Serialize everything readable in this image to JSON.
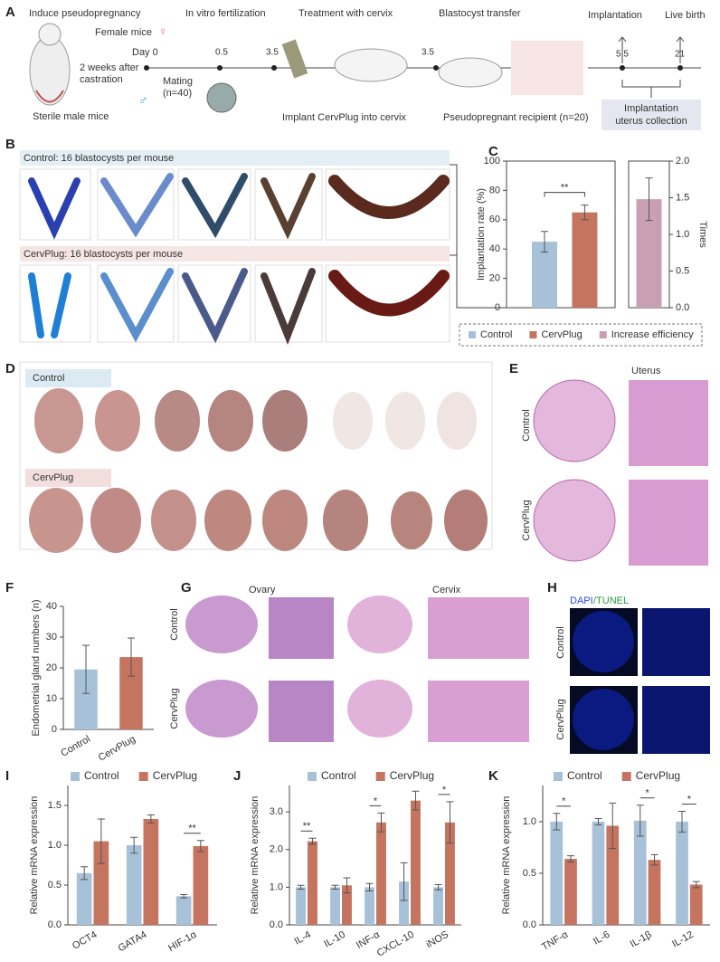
{
  "panel_a": {
    "label": "A",
    "steps": [
      "Induce pseudopregnancy",
      "In vitro fertilization",
      "Treatment with cervix",
      "Blastocyst transfer",
      "Implantation",
      "Live birth"
    ],
    "female": "Female mice",
    "female_symbol": "♀",
    "male": "Sterile male mice",
    "male_symbol": "♂",
    "castration": [
      "2 weeks after",
      "castration"
    ],
    "day0": "Day 0",
    "days": [
      "0.5",
      "3.5",
      "3.5",
      "5.5",
      "21"
    ],
    "mating": [
      "Mating",
      "(n=40)"
    ],
    "implant": "Implant CervPlug into cervix",
    "recipient": "Pseudopregnant recipient (n=20)",
    "collection": [
      "Implantation",
      "uterus collection"
    ]
  },
  "panel_b": {
    "label": "B",
    "control": "Control: 16 blastocysts per mouse",
    "cervplug": "CervPlug: 16 blastocysts per mouse"
  },
  "panel_d": {
    "label": "D",
    "control": "Control",
    "cervplug": "CervPlug"
  },
  "panel_e": {
    "label": "E",
    "title": "Uterus",
    "control": "Control",
    "cervplug": "CervPlug"
  },
  "panel_g": {
    "label": "G",
    "ovary": "Ovary",
    "cervix": "Cervix",
    "control": "Control",
    "cervplug": "CervPlug"
  },
  "panel_h": {
    "label": "H",
    "dapi": "DAPI",
    "tunel": "/TUNEL",
    "control": "Control",
    "cervplug": "CervPlug"
  },
  "chart_data": [
    {
      "type": "bar",
      "panel": "C",
      "ylabel": "Implantation rate (%)",
      "y2label": "Times",
      "ylim": [
        0,
        100
      ],
      "yticks": [
        0,
        20,
        40,
        60,
        80,
        100
      ],
      "y2lim": [
        0,
        2
      ],
      "y2ticks": [
        {
          "value": 0,
          "label": "0.0"
        },
        {
          "value": 0.5,
          "label": "0.5"
        },
        {
          "value": 1,
          "label": "1.0"
        },
        {
          "value": 1.5,
          "label": "1.5"
        },
        {
          "value": 2,
          "label": "2.0"
        }
      ],
      "series": [
        {
          "name": "Control",
          "color": "#a7c1d9",
          "values": [
            45
          ],
          "errors": [
            7
          ]
        },
        {
          "name": "CervPlug",
          "color": "#c57460",
          "values": [
            65
          ],
          "errors": [
            5
          ]
        },
        {
          "name": "Increase efficiency",
          "color": "#c9a0b3",
          "values": [
            1.48
          ],
          "errors": [
            0.29
          ],
          "axis": "y2"
        }
      ],
      "significance": "**"
    },
    {
      "type": "bar",
      "panel": "F",
      "ylabel": "Endometrial gland numbers (n)",
      "ylim": [
        0,
        40
      ],
      "yticks": [
        0,
        10,
        20,
        30,
        40
      ],
      "categories": [
        "Control",
        "CervPlug"
      ],
      "series": [
        {
          "name": null,
          "colors": [
            "#a7c1d9",
            "#c57460"
          ],
          "values": [
            19.5,
            23.5
          ],
          "errors": [
            7.8,
            6.2
          ]
        }
      ]
    },
    {
      "type": "bar",
      "panel": "I",
      "ylabel": "Relative mRNA expression",
      "ylim": [
        0,
        1.75
      ],
      "yticks": [
        {
          "value": 0,
          "label": "0.0"
        },
        {
          "value": 0.5,
          "label": "0.5"
        },
        {
          "value": 1,
          "label": "1.0"
        },
        {
          "value": 1.5,
          "label": "1.5"
        }
      ],
      "categories": [
        "OCT4",
        "GATA4",
        "HIF-1α"
      ],
      "series": [
        {
          "name": "Control",
          "color": "#a7c1d9",
          "values": [
            0.65,
            1.0,
            0.36
          ],
          "errors": [
            0.08,
            0.1,
            0.02
          ]
        },
        {
          "name": "CervPlug",
          "color": "#c57460",
          "values": [
            1.05,
            1.33,
            0.99
          ],
          "errors": [
            0.28,
            0.05,
            0.07
          ]
        }
      ],
      "significance": [
        null,
        null,
        "**"
      ]
    },
    {
      "type": "bar",
      "panel": "J",
      "ylabel": "Relative mRNA expression",
      "ylim": [
        0,
        3.7
      ],
      "yticks": [
        {
          "value": 0,
          "label": "0.0"
        },
        {
          "value": 1,
          "label": "1.0"
        },
        {
          "value": 2,
          "label": "2.0"
        },
        {
          "value": 3,
          "label": "3.0"
        }
      ],
      "categories": [
        "IL-4",
        "IL-10",
        "INF-α",
        "CXCL-10",
        "iNOS"
      ],
      "series": [
        {
          "name": "Control",
          "color": "#a7c1d9",
          "values": [
            1.0,
            1.0,
            1.0,
            1.15,
            1.0
          ],
          "errors": [
            0.05,
            0.05,
            0.1,
            0.5,
            0.07
          ]
        },
        {
          "name": "CervPlug",
          "color": "#c57460",
          "values": [
            2.22,
            1.05,
            2.72,
            3.3,
            2.72
          ],
          "errors": [
            0.08,
            0.2,
            0.25,
            0.25,
            0.55
          ]
        }
      ],
      "significance": [
        "**",
        null,
        "*",
        null,
        "*"
      ]
    },
    {
      "type": "bar",
      "panel": "K",
      "ylabel": "Relative mRNA expression",
      "ylim": [
        0,
        1.35
      ],
      "yticks": [
        {
          "value": 0,
          "label": "0.0"
        },
        {
          "value": 0.5,
          "label": "0.5"
        },
        {
          "value": 1,
          "label": "1.0"
        }
      ],
      "categories": [
        "TNF-α",
        "IL-6",
        "IL-1β",
        "IL-12"
      ],
      "series": [
        {
          "name": "Control",
          "color": "#a7c1d9",
          "values": [
            1.0,
            1.0,
            1.01,
            1.0
          ],
          "errors": [
            0.08,
            0.03,
            0.15,
            0.1
          ]
        },
        {
          "name": "CervPlug",
          "color": "#c57460",
          "values": [
            0.64,
            0.96,
            0.63,
            0.39
          ],
          "errors": [
            0.03,
            0.22,
            0.05,
            0.03
          ]
        }
      ],
      "significance": [
        "*",
        null,
        "*",
        "*"
      ]
    }
  ]
}
